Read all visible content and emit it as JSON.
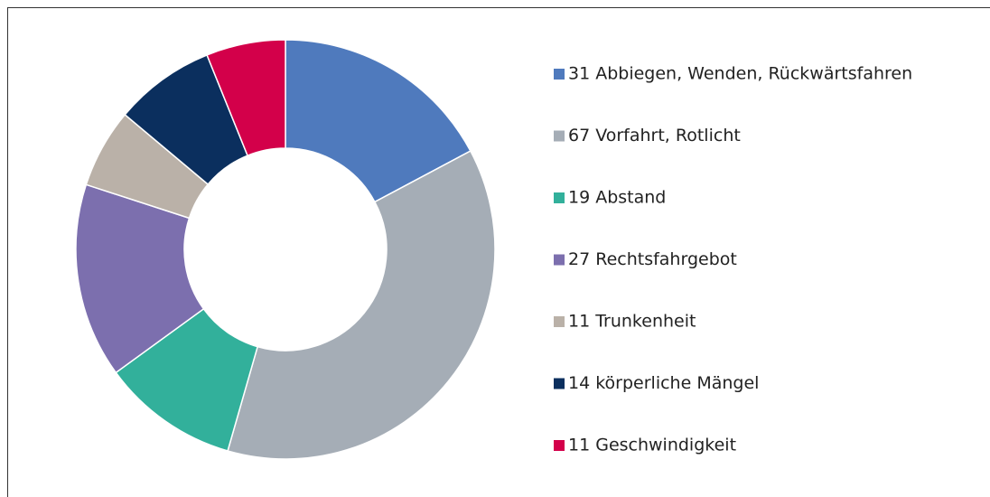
{
  "chart_data": {
    "type": "donut",
    "categories": [
      "31 Abbiegen, Wenden, Rückwärtsfahren",
      "67 Vorfahrt, Rotlicht",
      "19 Abstand",
      "27 Rechtsfahrgebot",
      "11 Trunkenheit",
      "14 körperliche Mängel",
      "11 Geschwindigkeit"
    ],
    "values": [
      31,
      67,
      19,
      27,
      11,
      14,
      11
    ],
    "colors": [
      "#4f7abd",
      "#a5adb6",
      "#32b09b",
      "#7c6fae",
      "#bab1a8",
      "#0b2f5e",
      "#d3004a"
    ],
    "legend": "right"
  }
}
